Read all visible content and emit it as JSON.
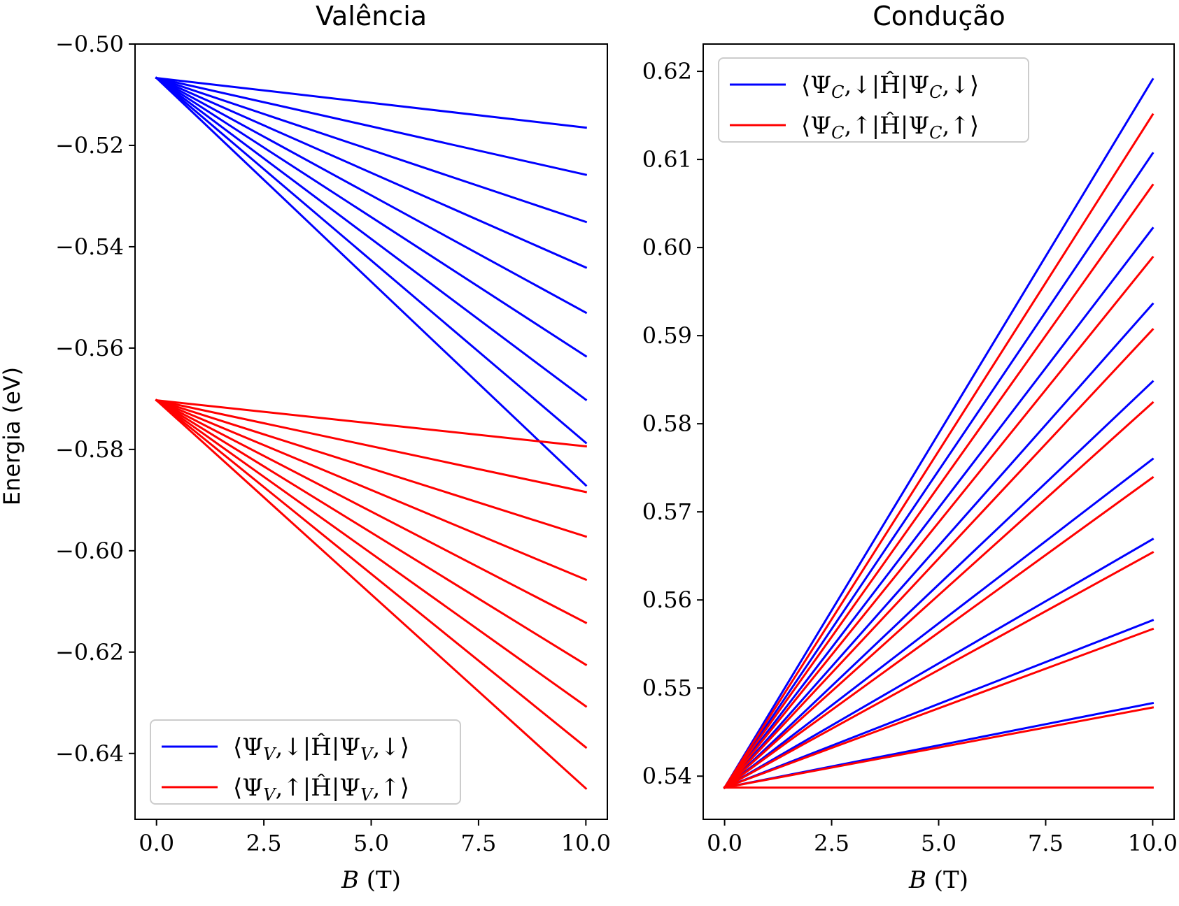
{
  "chart_data": [
    {
      "type": "line",
      "title": "Valência",
      "xlabel": "B (T)",
      "ylabel": "Energia (eV)",
      "xlim": [
        -0.5,
        10.5
      ],
      "ylim": [
        -0.653,
        -0.5
      ],
      "xticks": [
        0.0,
        2.5,
        5.0,
        7.5,
        10.0
      ],
      "xtick_labels": [
        "0.0",
        "2.5",
        "5.0",
        "7.5",
        "10.0"
      ],
      "yticks": [
        -0.5,
        -0.52,
        -0.54,
        -0.56,
        -0.58,
        -0.6,
        -0.62,
        -0.64
      ],
      "ytick_labels": [
        "−0.50",
        "−0.52",
        "−0.54",
        "−0.56",
        "−0.58",
        "−0.60",
        "−0.62",
        "−0.64"
      ],
      "legend_position": "lower-left",
      "series": [
        {
          "name": "⟨Ψ_V,↓|Ĥ|Ψ_V,↓⟩",
          "color": "#0000ff",
          "x": [
            0,
            10
          ],
          "lines": [
            [
              -0.5067,
              -0.5165
            ],
            [
              -0.5067,
              -0.5258
            ],
            [
              -0.5067,
              -0.5351
            ],
            [
              -0.5067,
              -0.5441
            ],
            [
              -0.5067,
              -0.553
            ],
            [
              -0.5067,
              -0.5616
            ],
            [
              -0.5067,
              -0.5702
            ],
            [
              -0.5067,
              -0.5787
            ],
            [
              -0.5067,
              -0.5871
            ]
          ]
        },
        {
          "name": "⟨Ψ_V,↑|Ĥ|Ψ_V,↑⟩",
          "color": "#ff0000",
          "x": [
            0,
            10
          ],
          "lines": [
            [
              -0.5703,
              -0.5794
            ],
            [
              -0.5703,
              -0.5884
            ],
            [
              -0.5703,
              -0.5972
            ],
            [
              -0.5703,
              -0.6057
            ],
            [
              -0.5703,
              -0.6142
            ],
            [
              -0.5703,
              -0.6225
            ],
            [
              -0.5703,
              -0.6307
            ],
            [
              -0.5703,
              -0.6388
            ],
            [
              -0.5703,
              -0.6469
            ]
          ]
        }
      ]
    },
    {
      "type": "line",
      "title": "Condução",
      "xlabel": "B (T)",
      "ylabel": "",
      "xlim": [
        -0.5,
        10.5
      ],
      "ylim": [
        0.5351,
        0.6231
      ],
      "xticks": [
        0.0,
        2.5,
        5.0,
        7.5,
        10.0
      ],
      "xtick_labels": [
        "0.0",
        "2.5",
        "5.0",
        "7.5",
        "10.0"
      ],
      "yticks": [
        0.54,
        0.55,
        0.56,
        0.57,
        0.58,
        0.59,
        0.6,
        0.61,
        0.62
      ],
      "ytick_labels": [
        "0.54",
        "0.55",
        "0.56",
        "0.57",
        "0.58",
        "0.59",
        "0.60",
        "0.61",
        "0.62"
      ],
      "legend_position": "top-left",
      "series": [
        {
          "name": "⟨Ψ_C,↓|Ĥ|Ψ_C,↓⟩",
          "color": "#0000ff",
          "x": [
            0,
            10
          ],
          "lines": [
            [
              0.5387,
              0.5483
            ],
            [
              0.5387,
              0.5577
            ],
            [
              0.5387,
              0.5669
            ],
            [
              0.5387,
              0.576
            ],
            [
              0.5387,
              0.5848
            ],
            [
              0.5387,
              0.5936
            ],
            [
              0.5387,
              0.6022
            ],
            [
              0.5387,
              0.6107
            ],
            [
              0.5387,
              0.6191
            ]
          ]
        },
        {
          "name": "⟨Ψ_C,↑|Ĥ|Ψ_C,↑⟩",
          "color": "#ff0000",
          "x": [
            0,
            10
          ],
          "lines": [
            [
              0.5387,
              0.5387
            ],
            [
              0.5387,
              0.5478
            ],
            [
              0.5387,
              0.5567
            ],
            [
              0.5387,
              0.5654
            ],
            [
              0.5387,
              0.5739
            ],
            [
              0.5387,
              0.5824
            ],
            [
              0.5387,
              0.5907
            ],
            [
              0.5387,
              0.5989
            ],
            [
              0.5387,
              0.6071
            ],
            [
              0.5387,
              0.6151
            ]
          ]
        }
      ]
    }
  ]
}
